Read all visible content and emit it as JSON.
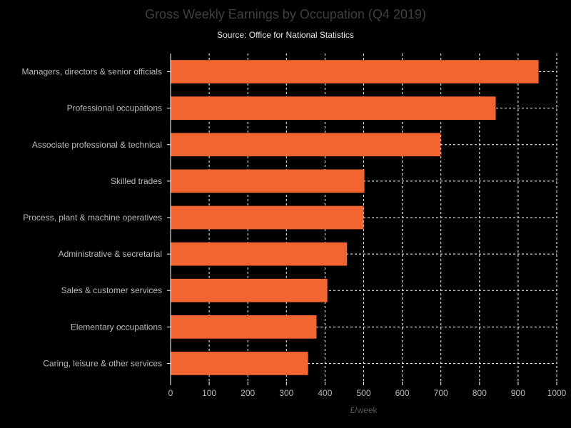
{
  "chart_data": {
    "type": "bar",
    "orientation": "horizontal",
    "title": "Gross Weekly Earnings by Occupation (Q4 2019)",
    "subtitle": "Source: Office for National Statistics",
    "xlabel": "£/week",
    "ylabel": "",
    "xlim": [
      0,
      1000
    ],
    "xticks": [
      "0",
      "100",
      "200",
      "300",
      "400",
      "500",
      "600",
      "700",
      "800",
      "900",
      "1000"
    ],
    "grid": true,
    "bar_color": "#f26430",
    "categories": [
      "Managers, directors & senior officials",
      "Professional occupations",
      "Associate professional & technical",
      "Skilled trades",
      "Process, plant & machine operatives",
      "Administrative & secretarial",
      "Sales & customer services",
      "Elementary occupations",
      "Caring, leisure & other services"
    ],
    "values": [
      953,
      842,
      699,
      502,
      500,
      457,
      406,
      378,
      356
    ]
  }
}
